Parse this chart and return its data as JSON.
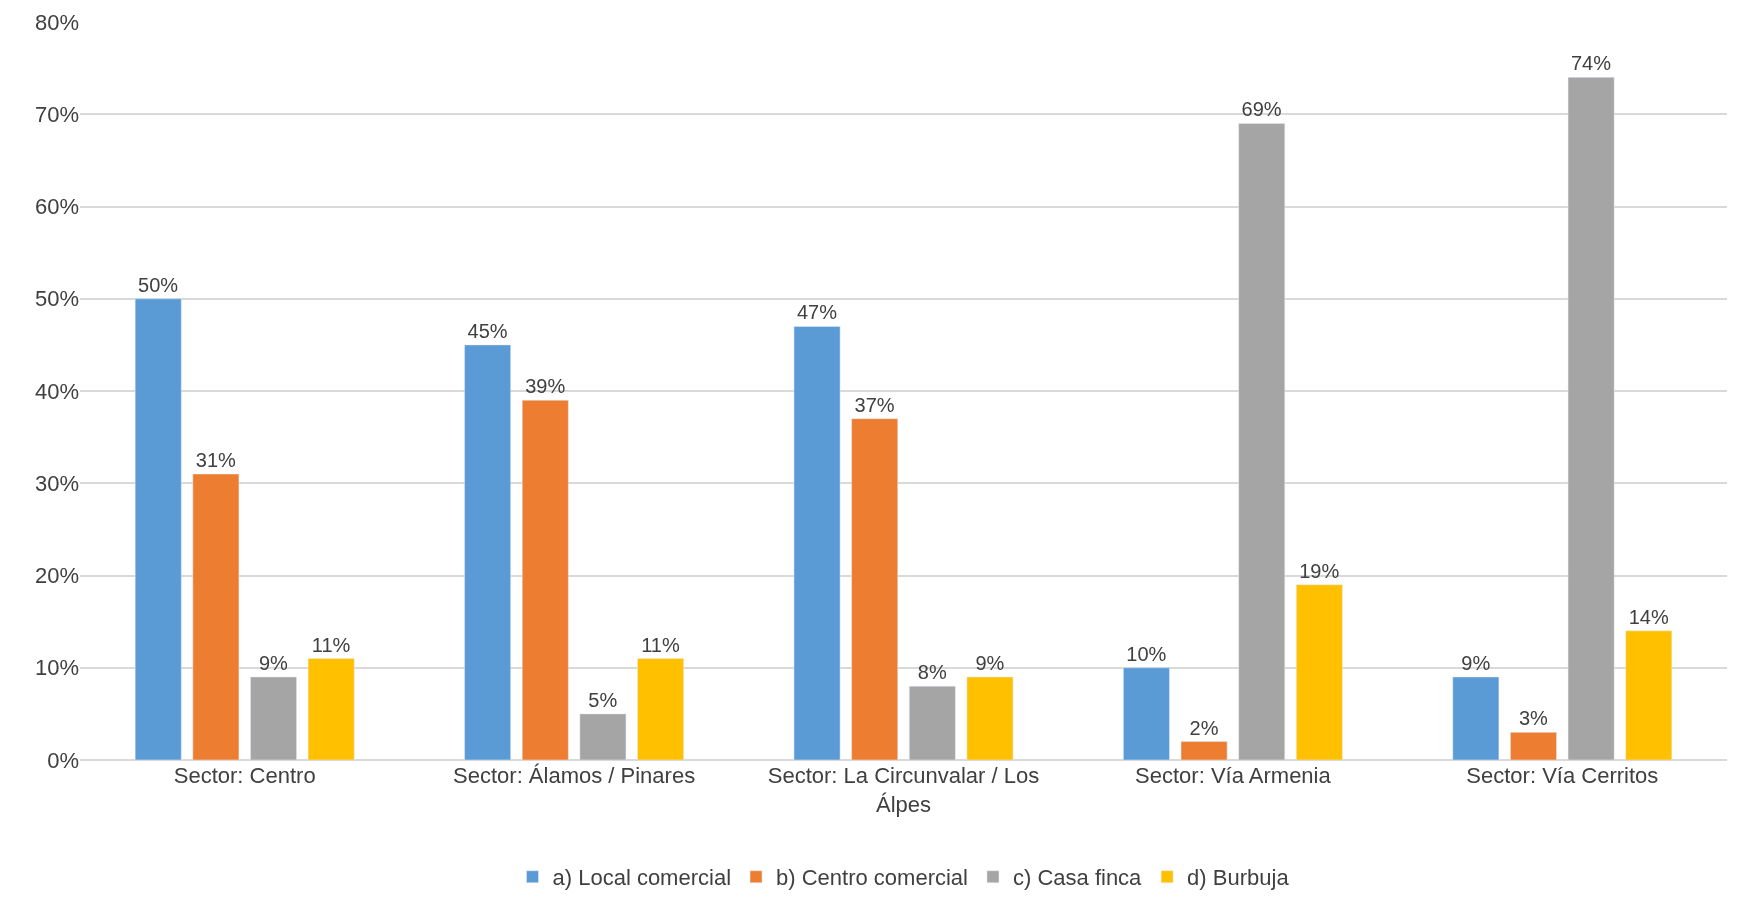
{
  "chart_data": {
    "type": "bar",
    "categories": [
      "Sector: Centro",
      "Sector: Álamos / Pinares",
      "Sector: La Circunvalar / Los Álpes",
      "Sector: Vía Armenia",
      "Sector: Vía Cerritos"
    ],
    "series": [
      {
        "name": "a) Local comercial",
        "color": "#5b9bd5",
        "values": [
          50,
          45,
          47,
          10,
          9
        ],
        "value_labels": [
          "50%",
          "45%",
          "47%",
          "10%",
          "9%"
        ]
      },
      {
        "name": "b) Centro comercial",
        "color": "#ed7d31",
        "values": [
          31,
          39,
          37,
          2,
          3
        ],
        "value_labels": [
          "31%",
          "39%",
          "37%",
          "2%",
          "3%"
        ]
      },
      {
        "name": "c) Casa finca",
        "color": "#a5a5a5",
        "values": [
          9,
          5,
          8,
          69,
          74
        ],
        "value_labels": [
          "9%",
          "5%",
          "8%",
          "69%",
          "74%"
        ]
      },
      {
        "name": "d) Burbuja",
        "color": "#ffc000",
        "values": [
          11,
          11,
          9,
          19,
          14
        ],
        "value_labels": [
          "11%",
          "11%",
          "9%",
          "19%",
          "14%"
        ]
      }
    ],
    "ylim": [
      0,
      80
    ],
    "yticks": [
      {
        "value": 0,
        "label": "0%"
      },
      {
        "value": 10,
        "label": "10%"
      },
      {
        "value": 20,
        "label": "20%"
      },
      {
        "value": 30,
        "label": "30%"
      },
      {
        "value": 40,
        "label": "40%"
      },
      {
        "value": 50,
        "label": "50%"
      },
      {
        "value": 60,
        "label": "60%"
      },
      {
        "value": 70,
        "label": "70%"
      },
      {
        "value": 80,
        "label": "80%"
      }
    ],
    "grid": "y",
    "legend": "bottom"
  }
}
